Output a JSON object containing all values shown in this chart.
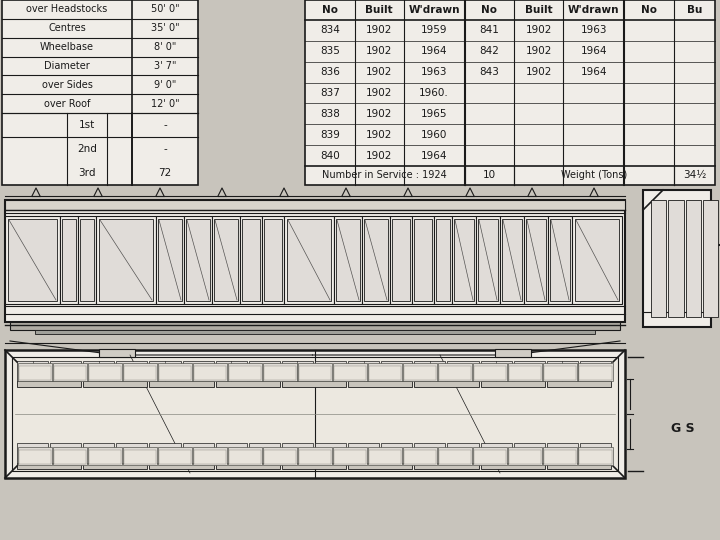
{
  "bg_color": "#c8c4bc",
  "line_color": "#1a1a1a",
  "title": "G S",
  "specs": [
    [
      "over Headstocks",
      "50' 0\""
    ],
    [
      "Centres",
      "35' 0\""
    ],
    [
      "Wheelbase",
      "8' 0\""
    ],
    [
      "Diameter",
      "3' 7\""
    ],
    [
      "over Sides",
      "9' 0\""
    ],
    [
      "over Roof",
      "12' 0\""
    ]
  ],
  "seats": [
    [
      "",
      "1st",
      "-"
    ],
    [
      "",
      "2nd",
      "-"
    ],
    [
      "",
      "3rd",
      "72"
    ]
  ],
  "carriage_data": [
    [
      "No",
      "Built",
      "W'drawn",
      "No",
      "Built",
      "W'drawn",
      "No",
      "Bu"
    ],
    [
      "834",
      "1902",
      "1959",
      "841",
      "1902",
      "1963",
      "",
      ""
    ],
    [
      "835",
      "1902",
      "1964",
      "842",
      "1902",
      "1964",
      "",
      ""
    ],
    [
      "836",
      "1902",
      "1963",
      "843",
      "1902",
      "1964",
      "",
      ""
    ],
    [
      "837",
      "1902",
      "1960.",
      "",
      "",
      "",
      "",
      ""
    ],
    [
      "838",
      "1902",
      "1965",
      "",
      "",
      "",
      "",
      ""
    ],
    [
      "839",
      "1902",
      "1960",
      "",
      "",
      "",
      "",
      ""
    ],
    [
      "840",
      "1902",
      "1964",
      "",
      "",
      "",
      "",
      ""
    ]
  ],
  "service_row": [
    "Number in Service : 1924",
    "10",
    "Weight (Tons)",
    "34½"
  ]
}
